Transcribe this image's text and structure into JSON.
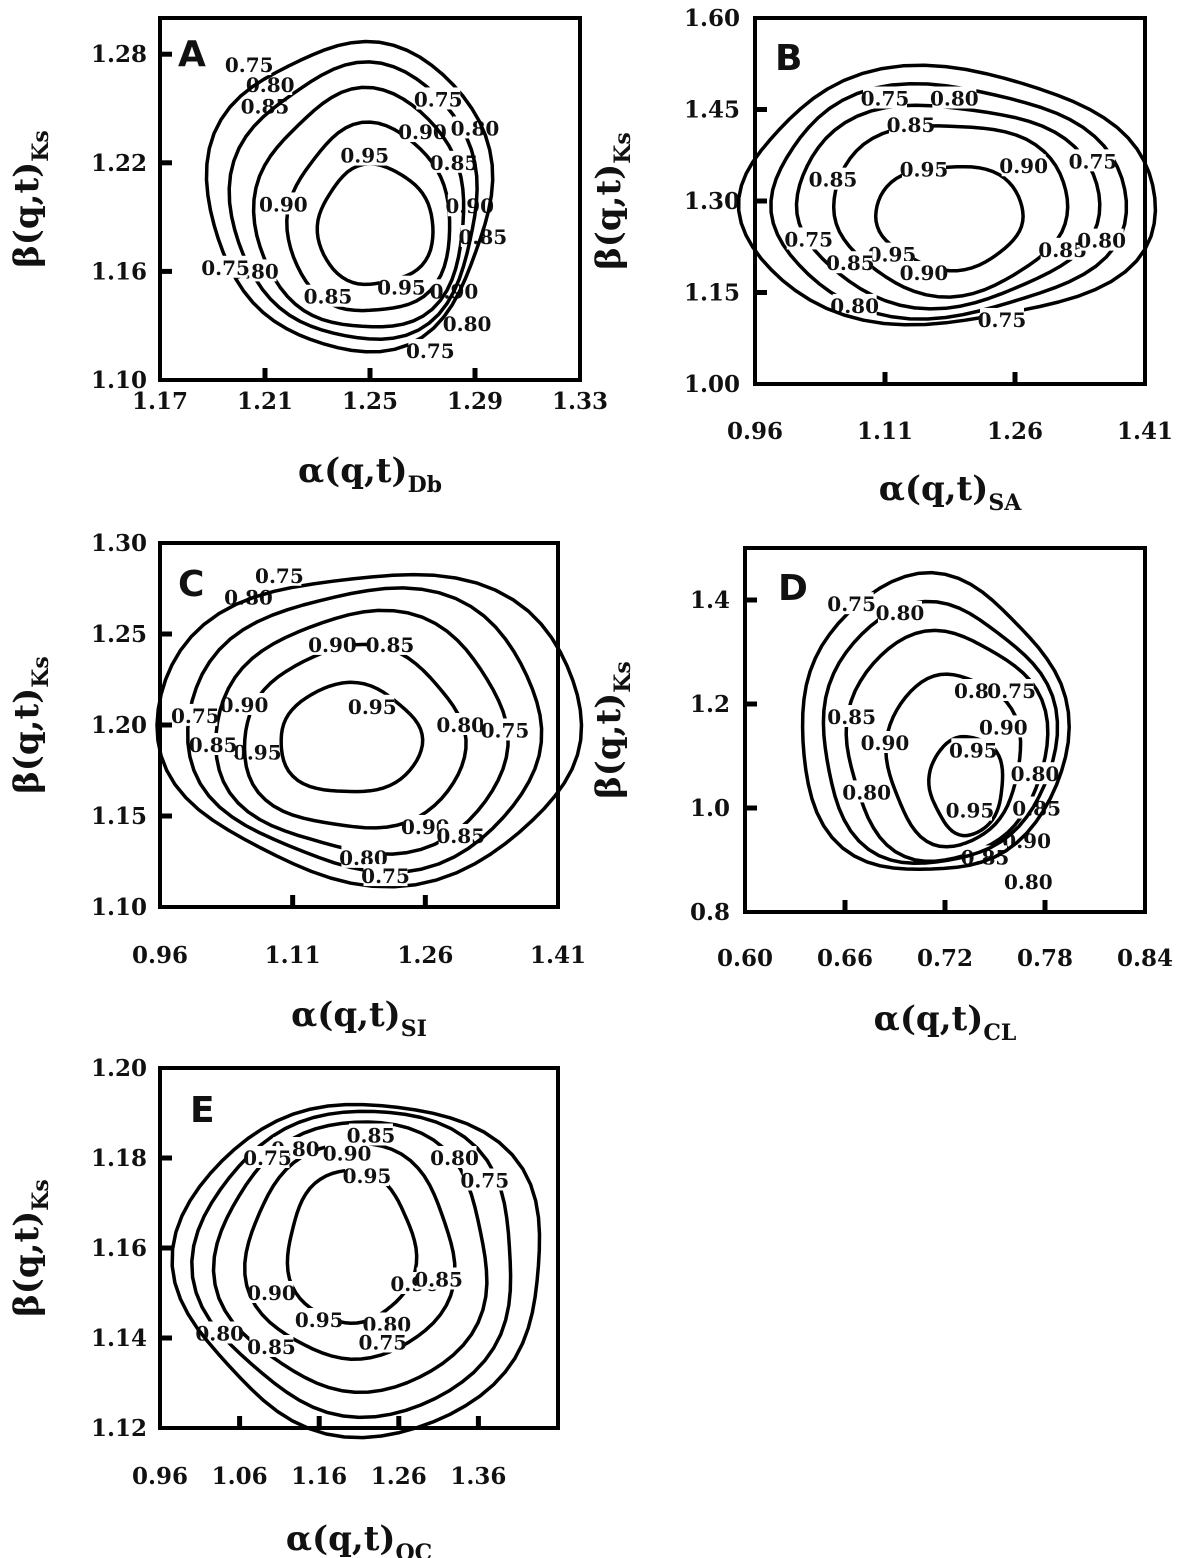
{
  "chart_data": [
    {
      "type": "contour",
      "panel": "A",
      "xlabel": "α(q,t)",
      "xlabel_sub": "Db",
      "ylabel": "β(q,t)",
      "ylabel_sub": "Ks",
      "xlim": [
        1.17,
        1.33
      ],
      "ylim": [
        1.1,
        1.3
      ],
      "xticks": [
        "1.17",
        "1.21",
        "1.25",
        "1.29",
        "1.33"
      ],
      "yticks": [
        "1.10",
        "1.16",
        "1.22",
        "1.28"
      ],
      "levels": [
        {
          "level": 0.95,
          "label": "0.95",
          "center": [
            1.252,
            1.185
          ],
          "rx": 0.022,
          "ry": 0.033,
          "label_pos": [
            [
              1.248,
              1.224
            ],
            [
              1.262,
              1.151
            ]
          ]
        },
        {
          "level": 0.9,
          "label": "0.90",
          "center": [
            1.25,
            1.188
          ],
          "rx": 0.031,
          "ry": 0.052,
          "label_pos": [
            [
              1.217,
              1.197
            ],
            [
              1.27,
              1.237
            ],
            [
              1.288,
              1.196
            ],
            [
              1.282,
              1.149
            ]
          ]
        },
        {
          "level": 0.85,
          "label": "0.85",
          "center": [
            1.247,
            1.193
          ],
          "rx": 0.04,
          "ry": 0.066,
          "label_pos": [
            [
              1.21,
              1.251
            ],
            [
              1.282,
              1.22
            ],
            [
              1.293,
              1.179
            ],
            [
              1.234,
              1.146
            ]
          ]
        },
        {
          "level": 0.8,
          "label": "0.80",
          "center": [
            1.245,
            1.198
          ],
          "rx": 0.047,
          "ry": 0.076,
          "label_pos": [
            [
              1.212,
              1.263
            ],
            [
              1.29,
              1.239
            ],
            [
              1.206,
              1.16
            ],
            [
              1.287,
              1.131
            ]
          ]
        },
        {
          "level": 0.75,
          "label": "0.75",
          "center": [
            1.243,
            1.202
          ],
          "rx": 0.054,
          "ry": 0.085,
          "label_pos": [
            [
              1.204,
              1.274
            ],
            [
              1.276,
              1.255
            ],
            [
              1.195,
              1.162
            ],
            [
              1.273,
              1.116
            ]
          ]
        }
      ]
    },
    {
      "type": "contour",
      "panel": "B",
      "xlabel": "α(q,t)",
      "xlabel_sub": "SA",
      "ylabel": "β(q,t)",
      "ylabel_sub": "Ks",
      "xlim": [
        0.96,
        1.41
      ],
      "ylim": [
        1.0,
        1.6
      ],
      "xticks": [
        "0.96",
        "1.11",
        "1.26",
        "1.41"
      ],
      "yticks": [
        "1.00",
        "1.15",
        "1.30",
        "1.45",
        "1.60"
      ],
      "levels": [
        {
          "level": 0.95,
          "label": "0.95",
          "center": [
            1.185,
            1.275
          ],
          "rx": 0.085,
          "ry": 0.085,
          "label_pos": [
            [
              1.155,
              1.352
            ],
            [
              1.118,
              1.212
            ]
          ]
        },
        {
          "level": 0.9,
          "label": "0.90",
          "center": [
            1.185,
            1.29
          ],
          "rx": 0.135,
          "ry": 0.14,
          "label_pos": [
            [
              1.27,
              1.357
            ],
            [
              1.155,
              1.182
            ]
          ]
        },
        {
          "level": 0.85,
          "label": "0.85",
          "center": [
            1.18,
            1.295
          ],
          "rx": 0.175,
          "ry": 0.165,
          "label_pos": [
            [
              1.14,
              1.425
            ],
            [
              1.05,
              1.335
            ],
            [
              1.07,
              1.198
            ],
            [
              1.315,
              1.22
            ]
          ]
        },
        {
          "level": 0.8,
          "label": "0.80",
          "center": [
            1.18,
            1.3
          ],
          "rx": 0.205,
          "ry": 0.19,
          "label_pos": [
            [
              1.19,
              1.468
            ],
            [
              1.36,
              1.235
            ],
            [
              1.075,
              1.128
            ]
          ]
        },
        {
          "level": 0.75,
          "label": "0.75",
          "center": [
            1.18,
            1.305
          ],
          "rx": 0.24,
          "ry": 0.21,
          "label_pos": [
            [
              1.11,
              1.468
            ],
            [
              1.35,
              1.365
            ],
            [
              1.022,
              1.237
            ],
            [
              1.245,
              1.105
            ]
          ]
        }
      ]
    },
    {
      "type": "contour",
      "panel": "C",
      "xlabel": "α(q,t)",
      "xlabel_sub": "SI",
      "ylabel": "β(q,t)",
      "ylabel_sub": "Ks",
      "xlim": [
        0.96,
        1.41
      ],
      "ylim": [
        1.1,
        1.3
      ],
      "xticks": [
        "0.96",
        "1.11",
        "1.26",
        "1.41"
      ],
      "yticks": [
        "1.10",
        "1.15",
        "1.20",
        "1.25",
        "1.30"
      ],
      "levels": [
        {
          "level": 0.95,
          "label": "0.95",
          "center": [
            1.175,
            1.192
          ],
          "rx": 0.08,
          "ry": 0.03,
          "label_pos": [
            [
              1.2,
              1.21
            ],
            [
              1.07,
              1.185
            ]
          ]
        },
        {
          "level": 0.9,
          "label": "0.90",
          "center": [
            1.18,
            1.192
          ],
          "rx": 0.125,
          "ry": 0.05,
          "label_pos": [
            [
              1.155,
              1.244
            ],
            [
              1.055,
              1.211
            ],
            [
              1.26,
              1.144
            ]
          ]
        },
        {
          "level": 0.85,
          "label": "0.85",
          "center": [
            1.19,
            1.195
          ],
          "rx": 0.165,
          "ry": 0.066,
          "label_pos": [
            [
              1.22,
              1.244
            ],
            [
              1.02,
              1.189
            ],
            [
              1.3,
              1.139
            ]
          ]
        },
        {
          "level": 0.8,
          "label": "0.80",
          "center": [
            1.195,
            1.198
          ],
          "rx": 0.2,
          "ry": 0.077,
          "label_pos": [
            [
              1.06,
              1.27
            ],
            [
              1.3,
              1.2
            ],
            [
              1.19,
              1.127
            ]
          ]
        },
        {
          "level": 0.75,
          "label": "0.75",
          "center": [
            1.2,
            1.2
          ],
          "rx": 0.24,
          "ry": 0.085,
          "label_pos": [
            [
              1.095,
              1.282
            ],
            [
              1.0,
              1.205
            ],
            [
              1.35,
              1.197
            ],
            [
              1.215,
              1.117
            ]
          ]
        }
      ]
    },
    {
      "type": "contour",
      "panel": "D",
      "xlabel": "α(q,t)",
      "xlabel_sub": "CL",
      "ylabel": "β(q,t)",
      "ylabel_sub": "Ks",
      "xlim": [
        0.6,
        0.84
      ],
      "ylim": [
        0.8,
        1.5
      ],
      "xticks": [
        "0.60",
        "0.66",
        "0.72",
        "0.78",
        "0.84"
      ],
      "yticks": [
        "0.8",
        "1.0",
        "1.2",
        "1.4"
      ],
      "levels": [
        {
          "level": 0.95,
          "label": "0.95",
          "center": [
            0.733,
            1.045
          ],
          "rx": 0.022,
          "ry": 0.095,
          "label_pos": [
            [
              0.737,
              1.111
            ],
            [
              0.735,
              0.995
            ]
          ]
        },
        {
          "level": 0.9,
          "label": "0.90",
          "center": [
            0.725,
            1.095
          ],
          "rx": 0.04,
          "ry": 0.165,
          "label_pos": [
            [
              0.684,
              1.125
            ],
            [
              0.755,
              1.155
            ],
            [
              0.769,
              0.937
            ]
          ]
        },
        {
          "level": 0.85,
          "label": "0.85",
          "center": [
            0.72,
            1.12
          ],
          "rx": 0.06,
          "ry": 0.22,
          "label_pos": [
            [
              0.74,
              1.225
            ],
            [
              0.664,
              1.175
            ],
            [
              0.775,
              0.999
            ],
            [
              0.744,
              0.905
            ]
          ]
        },
        {
          "level": 0.8,
          "label": "0.80",
          "center": [
            0.715,
            1.14
          ],
          "rx": 0.07,
          "ry": 0.25,
          "label_pos": [
            [
              0.693,
              1.375
            ],
            [
              0.673,
              1.03
            ],
            [
              0.774,
              1.065
            ],
            [
              0.77,
              0.858
            ]
          ]
        },
        {
          "level": 0.75,
          "label": "0.75",
          "center": [
            0.712,
            1.155
          ],
          "rx": 0.08,
          "ry": 0.285,
          "label_pos": [
            [
              0.664,
              1.392
            ],
            [
              0.76,
              1.225
            ]
          ]
        }
      ]
    },
    {
      "type": "contour",
      "panel": "E",
      "xlabel": "α(q,t)",
      "xlabel_sub": "OC",
      "ylabel": "β(q,t)",
      "ylabel_sub": "Ks",
      "xlim": [
        0.96,
        1.46
      ],
      "ylim": [
        1.12,
        1.2
      ],
      "xticks": [
        "0.96",
        "1.06",
        "1.16",
        "1.26",
        "1.36"
      ],
      "yticks": [
        "1.12",
        "1.14",
        "1.16",
        "1.18",
        "1.20"
      ],
      "levels": [
        {
          "level": 0.95,
          "label": "0.95",
          "center": [
            1.2,
            1.16
          ],
          "rx": 0.08,
          "ry": 0.017,
          "label_pos": [
            [
              1.22,
              1.176
            ],
            [
              1.16,
              1.144
            ]
          ]
        },
        {
          "level": 0.9,
          "label": "0.90",
          "center": [
            1.2,
            1.159
          ],
          "rx": 0.13,
          "ry": 0.024,
          "label_pos": [
            [
              1.195,
              1.181
            ],
            [
              1.1,
              1.15
            ],
            [
              1.28,
              1.152
            ]
          ]
        },
        {
          "level": 0.85,
          "label": "0.85",
          "center": [
            1.205,
            1.158
          ],
          "rx": 0.17,
          "ry": 0.03,
          "label_pos": [
            [
              1.225,
              1.185
            ],
            [
              1.1,
              1.138
            ],
            [
              1.31,
              1.153
            ]
          ]
        },
        {
          "level": 0.8,
          "label": "0.80",
          "center": [
            1.21,
            1.157
          ],
          "rx": 0.2,
          "ry": 0.034,
          "label_pos": [
            [
              1.13,
              1.182
            ],
            [
              1.035,
              1.141
            ],
            [
              1.245,
              1.143
            ],
            [
              1.33,
              1.18
            ]
          ]
        },
        {
          "level": 0.75,
          "label": "0.75",
          "center": [
            1.215,
            1.156
          ],
          "rx": 0.23,
          "ry": 0.037,
          "label_pos": [
            [
              1.095,
              1.18
            ],
            [
              1.368,
              1.175
            ],
            [
              1.24,
              1.139
            ]
          ]
        }
      ]
    }
  ]
}
